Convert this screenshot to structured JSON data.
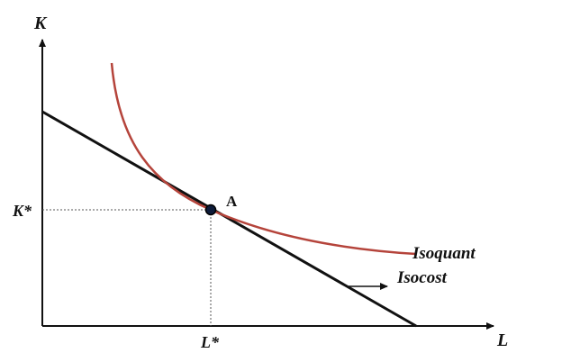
{
  "diagram": {
    "y_axis_label": "K",
    "x_axis_label": "L",
    "k_star_label": "K*",
    "l_star_label": "L*",
    "point_label": "A",
    "isoquant_label": "Isoquant",
    "isocost_label": "Isocost"
  },
  "colors": {
    "axis": "#111111",
    "isocost_line": "#111111",
    "isoquant_curve": "#b5443b",
    "guide_lines": "#555555",
    "point_fill": "#0d1b3a"
  }
}
